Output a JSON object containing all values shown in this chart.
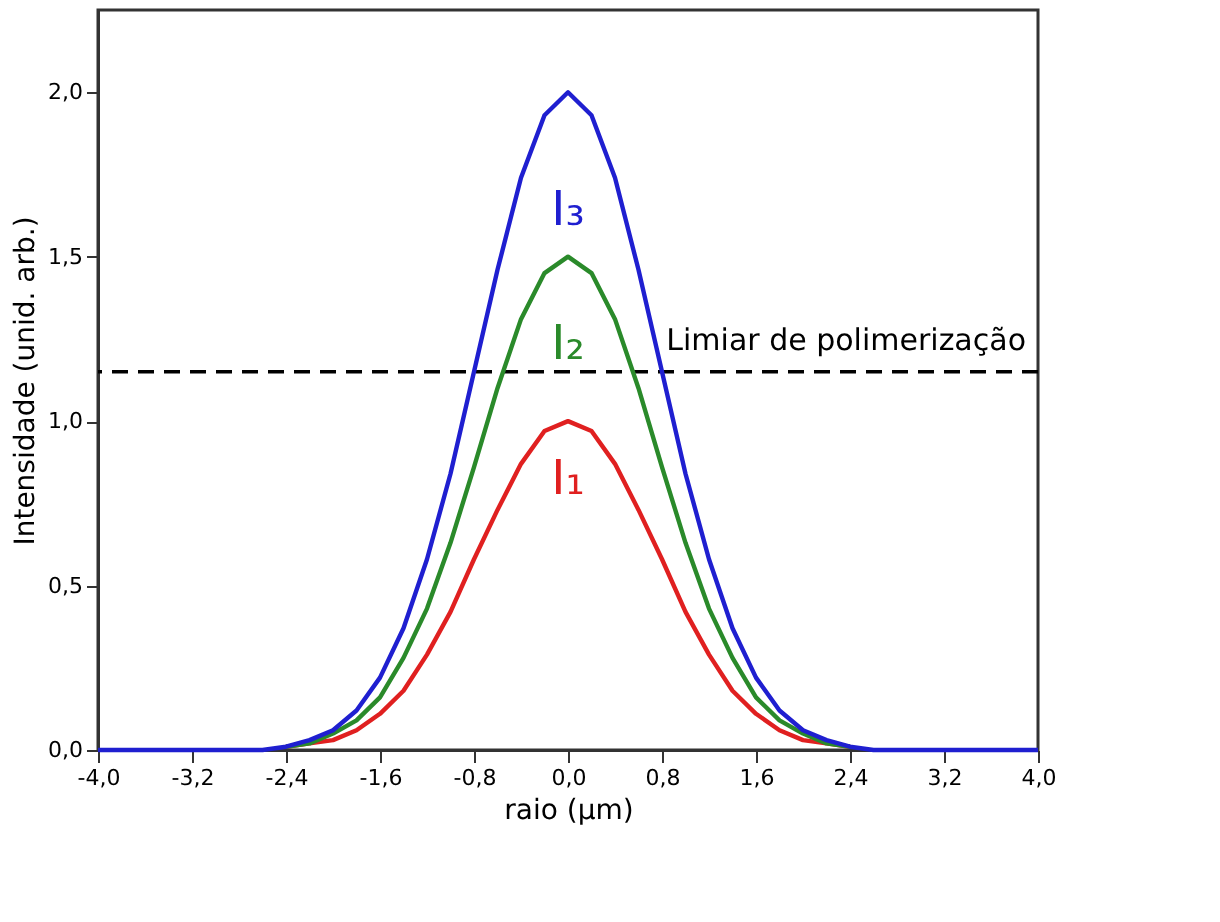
{
  "chart_data": {
    "type": "line",
    "xlabel": "raio (μm)",
    "ylabel": "Intensidade (unid. arb.)",
    "x": [
      -4,
      -3.2,
      -2.8,
      -2.6,
      -2.4,
      -2.2,
      -2,
      -1.8,
      -1.6,
      -1.4,
      -1.2,
      -1,
      -0.8,
      -0.6,
      -0.4,
      -0.2,
      0,
      0.2,
      0.4,
      0.6,
      0.8,
      1,
      1.2,
      1.4,
      1.6,
      1.8,
      2,
      2.2,
      2.4,
      2.6,
      2.8,
      3.2,
      4
    ],
    "series": [
      {
        "name": "I₃",
        "color": "#1f1fd0",
        "values": [
          0,
          0,
          0,
          0,
          0.01,
          0.03,
          0.06,
          0.12,
          0.22,
          0.37,
          0.58,
          0.84,
          1.15,
          1.46,
          1.74,
          1.93,
          2,
          1.93,
          1.74,
          1.46,
          1.15,
          0.84,
          0.58,
          0.37,
          0.22,
          0.12,
          0.06,
          0.03,
          0.01,
          0,
          0,
          0,
          0
        ]
      },
      {
        "name": "I₂",
        "color": "#2a8a2a",
        "values": [
          null,
          null,
          null,
          null,
          0.01,
          0.02,
          0.05,
          0.09,
          0.16,
          0.28,
          0.43,
          0.63,
          0.86,
          1.1,
          1.31,
          1.45,
          1.5,
          1.45,
          1.31,
          1.1,
          0.86,
          0.63,
          0.43,
          0.28,
          0.16,
          0.09,
          0.05,
          0.02,
          0.01,
          null,
          null,
          null,
          null
        ]
      },
      {
        "name": "I₁",
        "color": "#e02020",
        "values": [
          null,
          null,
          null,
          null,
          0.01,
          0.02,
          0.03,
          0.06,
          0.11,
          0.18,
          0.29,
          0.42,
          0.58,
          0.73,
          0.87,
          0.97,
          1,
          0.97,
          0.87,
          0.73,
          0.58,
          0.42,
          0.29,
          0.18,
          0.11,
          0.06,
          0.03,
          0.02,
          0.01,
          null,
          null,
          null,
          null
        ]
      }
    ],
    "xlim": [
      -4,
      4
    ],
    "xticks": [
      {
        "value": -4,
        "label": "-4,0"
      },
      {
        "value": -3.2,
        "label": "-3,2"
      },
      {
        "value": -2.4,
        "label": "-2,4"
      },
      {
        "value": -1.6,
        "label": "-1,6"
      },
      {
        "value": -0.8,
        "label": "-0,8"
      },
      {
        "value": 0,
        "label": "0,0"
      },
      {
        "value": 0.8,
        "label": "0,8"
      },
      {
        "value": 1.6,
        "label": "1,6"
      },
      {
        "value": 2.4,
        "label": "2,4"
      },
      {
        "value": 3.2,
        "label": "3,2"
      },
      {
        "value": 4,
        "label": "4,0"
      }
    ],
    "ylim": [
      0,
      2.25
    ],
    "yticks": [
      {
        "value": 0,
        "label": "0,0"
      },
      {
        "value": 0.5,
        "label": "0,5"
      },
      {
        "value": 1,
        "label": "1,0"
      },
      {
        "value": 1.5,
        "label": "1,5"
      },
      {
        "value": 2,
        "label": "2,0"
      }
    ],
    "ref_lines": [
      {
        "axis": "y",
        "value": 1.15,
        "label": "Limiar de polimerização",
        "color": "#000000",
        "line_style": "dashed"
      }
    ],
    "grid": false,
    "legend": false,
    "line_style": "solid",
    "marker": "none"
  }
}
